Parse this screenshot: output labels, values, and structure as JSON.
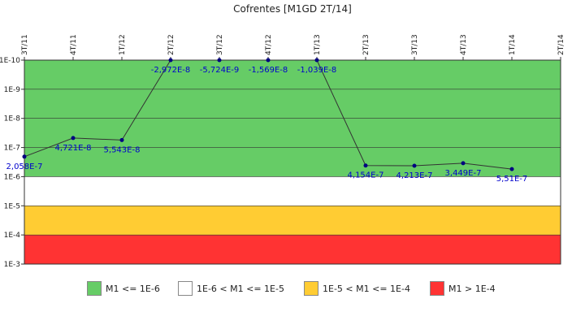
{
  "chart_data": {
    "type": "line",
    "title": "Cofrentes [M1GD 2T/14]",
    "categories": [
      "3T/11",
      "4T/11",
      "1T/12",
      "2T/12",
      "3T/12",
      "4T/12",
      "1T/13",
      "2T/13",
      "3T/13",
      "4T/13",
      "1T/14",
      "2T/14"
    ],
    "y_scale": "log",
    "y_axis_inverted": true,
    "y_ticks": [
      "1E-10",
      "1E-9",
      "1E-8",
      "1E-7",
      "1E-6",
      "1E-5",
      "1E-4",
      "1E-3"
    ],
    "ylim": [
      1e-10,
      0.001
    ],
    "series": [
      {
        "values": [
          2.058e-07,
          4.721e-08,
          5.543e-08,
          -2.972e-08,
          -5.724e-09,
          -1.569e-08,
          -1.039e-08,
          4.154e-07,
          4.213e-07,
          3.449e-07,
          5.51e-07,
          null
        ],
        "labels": [
          "2,058E-7",
          "4,721E-8",
          "5,543E-8",
          "-2,972E-8",
          "-5,724E-9",
          "-1,569E-8",
          "-1,039E-8",
          "4,154E-7",
          "4,213E-7",
          "3,449E-7",
          "5,51E-7",
          ""
        ]
      }
    ],
    "bands": [
      {
        "from": 1e-10,
        "to": 1e-06,
        "color": "#66cc66",
        "label": "M1 <= 1E-6"
      },
      {
        "from": 1e-06,
        "to": 1e-05,
        "color": "#ffffff",
        "label": "1E-6 < M1 <= 1E-5"
      },
      {
        "from": 1e-05,
        "to": 0.0001,
        "color": "#ffcc33",
        "label": "1E-5 < M1 <= 1E-4"
      },
      {
        "from": 0.0001,
        "to": 0.001,
        "color": "#ff3333",
        "label": "M1 > 1E-4"
      }
    ],
    "line_color": "#333333",
    "marker_color": "#000080",
    "grid": true,
    "legend_position": "bottom"
  }
}
